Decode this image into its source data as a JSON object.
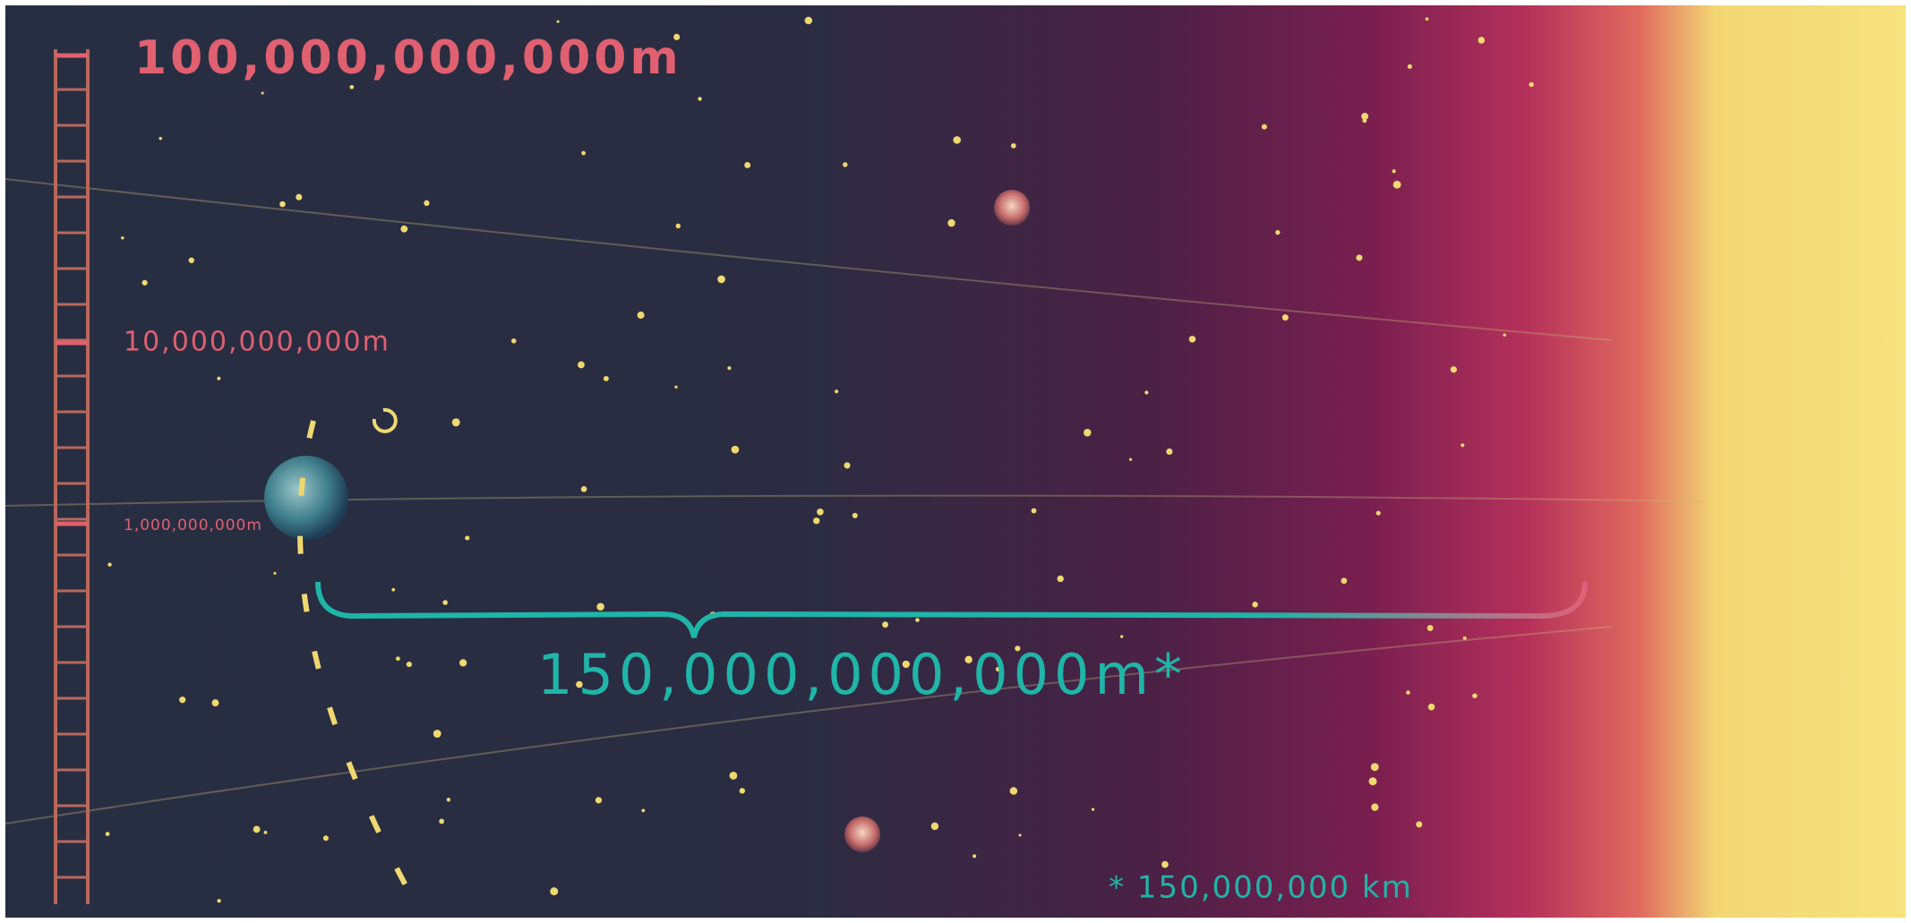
{
  "scale": {
    "labels": [
      "100,000,000,000m",
      "10,000,000,000m",
      "1,000,000,000m"
    ]
  },
  "distance": {
    "label": "150,000,000,000m*",
    "footnote": "* 150,000,000 km"
  }
}
